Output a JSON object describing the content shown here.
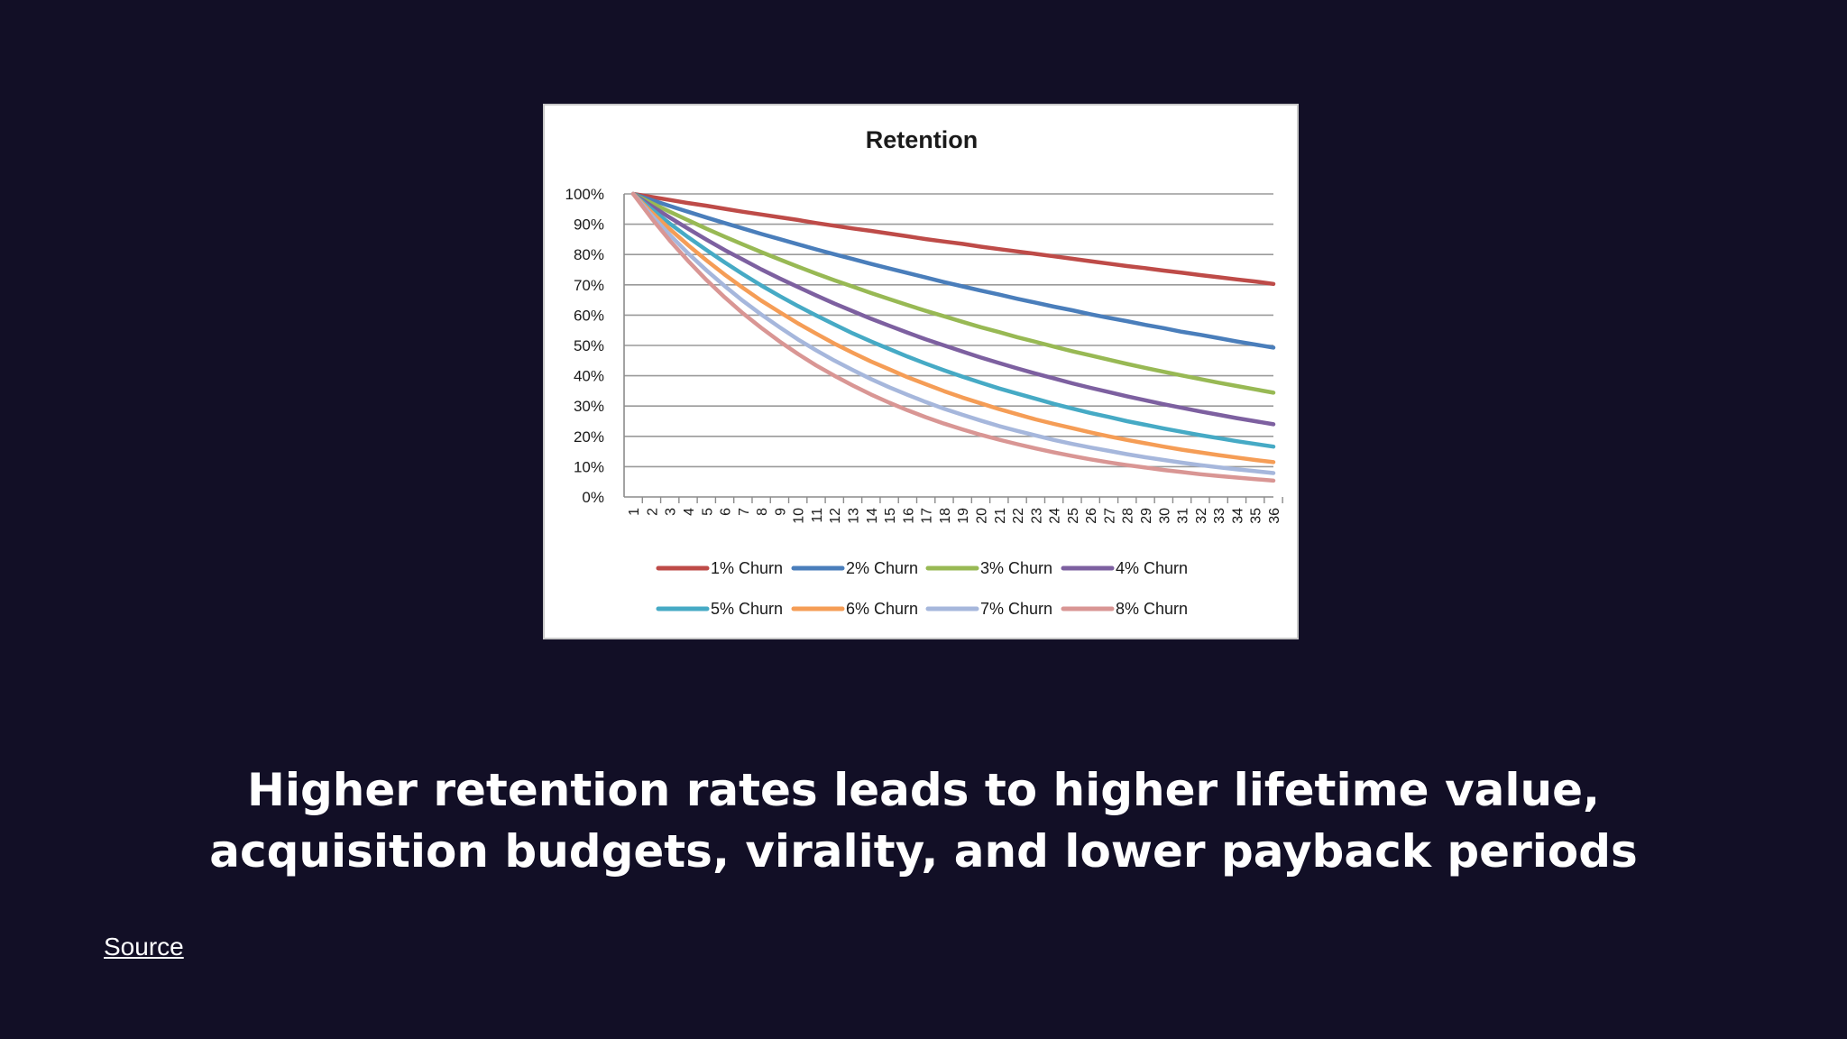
{
  "slide": {
    "headline": "Higher retention rates leads to higher lifetime value, acquisition budgets, virality, and lower payback periods",
    "source_label": "Source",
    "background": "#120f26",
    "text_color": "#ffffff"
  },
  "chart_data": {
    "type": "line",
    "title": "Retention",
    "xlabel": "",
    "ylabel": "",
    "x": [
      1,
      2,
      3,
      4,
      5,
      6,
      7,
      8,
      9,
      10,
      11,
      12,
      13,
      14,
      15,
      16,
      17,
      18,
      19,
      20,
      21,
      22,
      23,
      24,
      25,
      26,
      27,
      28,
      29,
      30,
      31,
      32,
      33,
      34,
      35,
      36
    ],
    "x_tick_labels": [
      "1",
      "2",
      "3",
      "4",
      "5",
      "6",
      "7",
      "8",
      "9",
      "10",
      "11",
      "12",
      "13",
      "14",
      "15",
      "16",
      "17",
      "18",
      "19",
      "20",
      "21",
      "22",
      "23",
      "24",
      "25",
      "26",
      "27",
      "28",
      "29",
      "30",
      "31",
      "32",
      "33",
      "34",
      "35",
      "36"
    ],
    "y_tick_labels": [
      "0%",
      "10%",
      "20%",
      "30%",
      "40%",
      "50%",
      "60%",
      "70%",
      "80%",
      "90%",
      "100%"
    ],
    "ylim": [
      0,
      1
    ],
    "grid": true,
    "legend_position": "bottom",
    "series": [
      {
        "name": "1% Churn",
        "churn": 0.01,
        "color": "#be4b48",
        "values": [
          1.0,
          0.99,
          0.98,
          0.97,
          0.961,
          0.951,
          0.941,
          0.932,
          0.923,
          0.914,
          0.904,
          0.895,
          0.886,
          0.878,
          0.869,
          0.86,
          0.851,
          0.843,
          0.835,
          0.826,
          0.818,
          0.81,
          0.802,
          0.794,
          0.786,
          0.778,
          0.77,
          0.762,
          0.755,
          0.747,
          0.74,
          0.732,
          0.725,
          0.718,
          0.711,
          0.703
        ]
      },
      {
        "name": "2% Churn",
        "churn": 0.02,
        "color": "#4a7ebb",
        "values": [
          1.0,
          0.98,
          0.96,
          0.941,
          0.922,
          0.904,
          0.886,
          0.868,
          0.851,
          0.834,
          0.817,
          0.801,
          0.785,
          0.769,
          0.754,
          0.739,
          0.724,
          0.709,
          0.695,
          0.681,
          0.668,
          0.654,
          0.641,
          0.628,
          0.616,
          0.603,
          0.591,
          0.58,
          0.568,
          0.557,
          0.545,
          0.535,
          0.524,
          0.513,
          0.503,
          0.493
        ]
      },
      {
        "name": "3% Churn",
        "churn": 0.03,
        "color": "#98b954",
        "values": [
          1.0,
          0.97,
          0.941,
          0.913,
          0.885,
          0.859,
          0.833,
          0.808,
          0.784,
          0.76,
          0.737,
          0.715,
          0.694,
          0.673,
          0.653,
          0.633,
          0.614,
          0.596,
          0.578,
          0.56,
          0.544,
          0.527,
          0.512,
          0.496,
          0.481,
          0.467,
          0.453,
          0.439,
          0.426,
          0.413,
          0.401,
          0.389,
          0.377,
          0.366,
          0.355,
          0.344
        ]
      },
      {
        "name": "4% Churn",
        "churn": 0.04,
        "color": "#7d60a0",
        "values": [
          1.0,
          0.96,
          0.922,
          0.885,
          0.849,
          0.815,
          0.783,
          0.751,
          0.721,
          0.693,
          0.665,
          0.638,
          0.613,
          0.588,
          0.565,
          0.542,
          0.52,
          0.5,
          0.48,
          0.46,
          0.442,
          0.424,
          0.407,
          0.391,
          0.375,
          0.36,
          0.346,
          0.332,
          0.319,
          0.306,
          0.294,
          0.282,
          0.271,
          0.26,
          0.25,
          0.24
        ]
      },
      {
        "name": "5% Churn",
        "churn": 0.05,
        "color": "#46aac5",
        "values": [
          1.0,
          0.95,
          0.902,
          0.857,
          0.815,
          0.774,
          0.735,
          0.698,
          0.663,
          0.63,
          0.599,
          0.569,
          0.54,
          0.513,
          0.488,
          0.463,
          0.44,
          0.418,
          0.397,
          0.377,
          0.358,
          0.341,
          0.324,
          0.307,
          0.292,
          0.277,
          0.264,
          0.25,
          0.238,
          0.226,
          0.215,
          0.204,
          0.194,
          0.184,
          0.175,
          0.166
        ]
      },
      {
        "name": "6% Churn",
        "churn": 0.06,
        "color": "#f59d56",
        "values": [
          1.0,
          0.94,
          0.884,
          0.831,
          0.781,
          0.734,
          0.69,
          0.648,
          0.61,
          0.573,
          0.539,
          0.506,
          0.476,
          0.447,
          0.421,
          0.395,
          0.372,
          0.349,
          0.328,
          0.309,
          0.29,
          0.273,
          0.256,
          0.241,
          0.227,
          0.213,
          0.2,
          0.188,
          0.177,
          0.166,
          0.156,
          0.147,
          0.138,
          0.13,
          0.122,
          0.115
        ]
      },
      {
        "name": "7% Churn",
        "churn": 0.07,
        "color": "#a6b7dc",
        "values": [
          1.0,
          0.93,
          0.865,
          0.804,
          0.748,
          0.696,
          0.647,
          0.602,
          0.56,
          0.52,
          0.484,
          0.45,
          0.419,
          0.389,
          0.362,
          0.337,
          0.313,
          0.291,
          0.271,
          0.252,
          0.234,
          0.218,
          0.203,
          0.188,
          0.175,
          0.163,
          0.152,
          0.141,
          0.131,
          0.122,
          0.113,
          0.105,
          0.098,
          0.091,
          0.085,
          0.079
        ]
      },
      {
        "name": "8% Churn",
        "churn": 0.08,
        "color": "#d99694",
        "values": [
          1.0,
          0.92,
          0.846,
          0.779,
          0.716,
          0.659,
          0.606,
          0.558,
          0.513,
          0.472,
          0.434,
          0.4,
          0.368,
          0.338,
          0.311,
          0.286,
          0.263,
          0.242,
          0.223,
          0.205,
          0.189,
          0.174,
          0.16,
          0.147,
          0.135,
          0.124,
          0.114,
          0.105,
          0.097,
          0.089,
          0.082,
          0.075,
          0.069,
          0.064,
          0.059,
          0.054
        ]
      }
    ]
  }
}
